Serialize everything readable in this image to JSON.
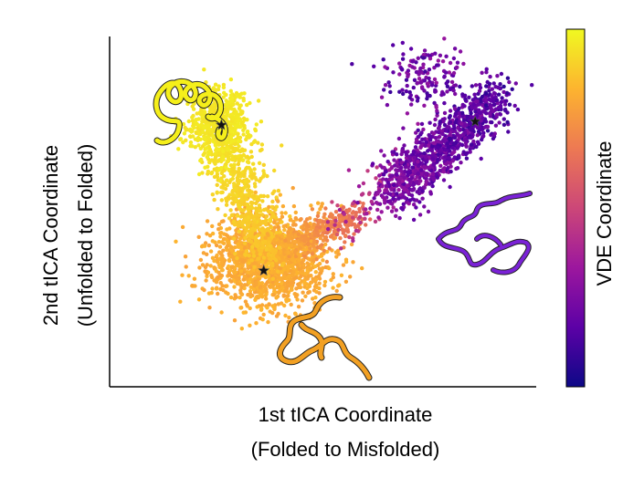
{
  "chart_data": {
    "type": "scatter",
    "title": "",
    "xlabel_line1": "1st tICA Coordinate",
    "xlabel_line2": "(Folded to Misfolded)",
    "ylabel_line1": "2nd tICA Coordinate",
    "ylabel_line2": "(Unfolded to Folded)",
    "colorbar_label": "VDE Coordinate",
    "colormap": "plasma",
    "colormap_stops": [
      "#0d0887",
      "#5c01a6",
      "#9c179e",
      "#cc4778",
      "#ed7953",
      "#fdb42f",
      "#f0f921"
    ],
    "axis_ticks_shown": false,
    "grid": false,
    "clusters": [
      {
        "name_hidden": true,
        "role": "folded",
        "center": [
          0.25,
          0.76
        ],
        "spread": [
          0.035,
          0.05
        ],
        "color_value": 0.97,
        "count": 450
      },
      {
        "name_hidden": true,
        "role": "unfolded",
        "center": [
          0.37,
          0.36
        ],
        "spread": [
          0.07,
          0.065
        ],
        "color_value": 0.84,
        "count": 1500
      },
      {
        "name_hidden": true,
        "role": "misfolded",
        "center": [
          0.86,
          0.76
        ],
        "spread": [
          0.065,
          0.05
        ],
        "color_value": 0.06,
        "count": 900
      }
    ],
    "highlighted_states": [
      {
        "marker": "star",
        "x": 0.26,
        "y": 0.75
      },
      {
        "marker": "star",
        "x": 0.36,
        "y": 0.33
      },
      {
        "marker": "star",
        "x": 0.86,
        "y": 0.76
      }
    ],
    "structure_colors": {
      "folded": "#f5ef1a",
      "unfolded": "#f2a023",
      "misfolded": "#7a22d6"
    }
  }
}
